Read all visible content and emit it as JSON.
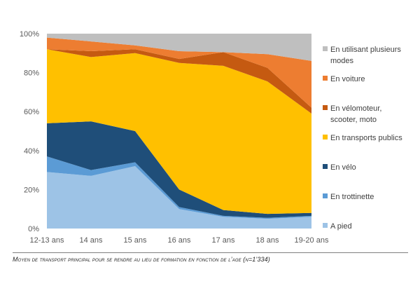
{
  "chart_data": {
    "type": "area",
    "stacked": true,
    "categories": [
      "12-13 ans",
      "14 ans",
      "15 ans",
      "16 ans",
      "17 ans",
      "18 ans",
      "19-20 ans"
    ],
    "y_ticks": [
      "0%",
      "20%",
      "40%",
      "60%",
      "80%",
      "100%"
    ],
    "ylim": [
      0,
      100
    ],
    "series": [
      {
        "name": "A pied",
        "color": "#9DC3E6",
        "values": [
          29,
          27,
          32,
          10,
          6,
          5,
          6
        ]
      },
      {
        "name": "En trottinette",
        "color": "#5B9BD5",
        "values": [
          8,
          3,
          2,
          1,
          0.5,
          0.5,
          0.5
        ]
      },
      {
        "name": "En vélo",
        "color": "#1F4E79",
        "values": [
          17,
          25,
          16,
          9,
          3,
          2,
          1.5
        ]
      },
      {
        "name": "En transports publics",
        "color": "#FFC000",
        "values": [
          38,
          33,
          40,
          65,
          74,
          68,
          51
        ]
      },
      {
        "name": "En vélomoteur, scooter, moto",
        "color": "#C55A11",
        "values": [
          0,
          3,
          2,
          2,
          7,
          7,
          3
        ]
      },
      {
        "name": "En voiture",
        "color": "#ED7D31",
        "values": [
          6,
          5,
          2,
          4,
          0,
          7,
          24
        ]
      },
      {
        "name": "En utilisant plusieurs modes",
        "color": "#BFBFBF",
        "values": [
          2,
          4,
          6,
          9,
          9.5,
          10.5,
          14
        ]
      }
    ],
    "legend": [
      {
        "label_lines": [
          "En utilisant plusieurs",
          "modes"
        ],
        "color": "#BFBFBF"
      },
      {
        "label_lines": [
          "En voiture"
        ],
        "color": "#ED7D31"
      },
      {
        "label_lines": [
          "En vélomoteur,",
          "scooter, moto"
        ],
        "color": "#C55A11"
      },
      {
        "label_lines": [
          "En transports publics"
        ],
        "color": "#FFC000"
      },
      {
        "label_lines": [
          "En vélo"
        ],
        "color": "#1F4E79"
      },
      {
        "label_lines": [
          "En trottinette"
        ],
        "color": "#5B9BD5"
      },
      {
        "label_lines": [
          "A pied"
        ],
        "color": "#9DC3E6"
      }
    ],
    "legend_position": "right"
  },
  "caption": {
    "text": "Moyen de transport principal pour se rendre au lieu de formation en fonction de l’age (n=1’334)"
  }
}
